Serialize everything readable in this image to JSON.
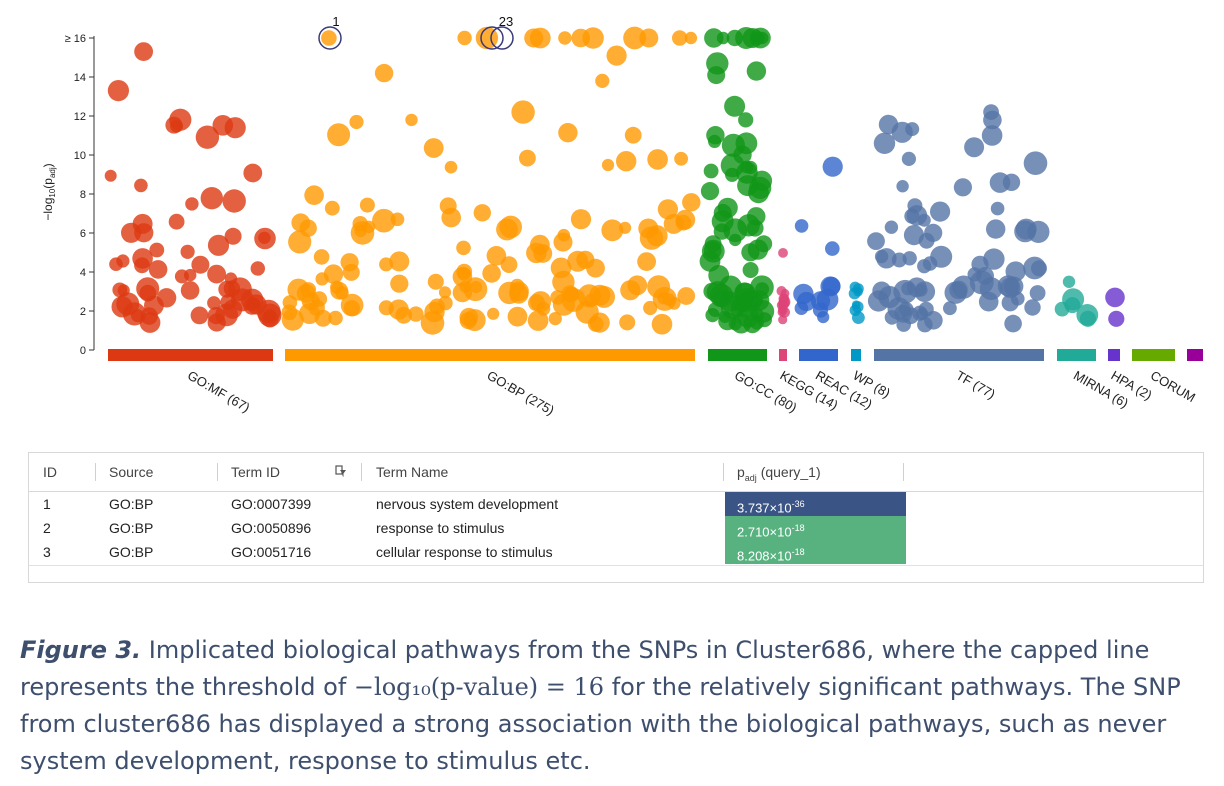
{
  "colors": {
    "GO:MF": "#dc3912",
    "GO:BP": "#ff9900",
    "GO:CC": "#109618",
    "KEGG": "#dd4477",
    "REAC": "#3366cc",
    "WP": "#0099c6",
    "TF": "#5574a6",
    "MIRNA": "#22aa99",
    "HPA": "#6633cc",
    "CORUM": "#66aa00",
    "HP": "#990099",
    "highlight_dark": "#3a5486",
    "highlight_green": "#58b27f"
  },
  "chart_data": {
    "type": "scatter",
    "title": "",
    "ylabel": "−log10(padj)",
    "ylabel_main": "−log",
    "ylabel_sub10": "10",
    "ylabel_p": "(p",
    "ylabel_adj": "adj",
    "ylabel_close": ")",
    "ylim": [
      0,
      16
    ],
    "yticks": [
      "0",
      "2",
      "4",
      "6",
      "8",
      "10",
      "12",
      "14",
      "≥ 16"
    ],
    "categories": [
      {
        "key": "GO:MF",
        "label": "GO:MF (67)",
        "count": 67
      },
      {
        "key": "GO:BP",
        "label": "GO:BP (275)",
        "count": 275
      },
      {
        "key": "GO:CC",
        "label": "GO:CC (80)",
        "count": 80
      },
      {
        "key": "KEGG",
        "label": "KEGG (14)",
        "count": 14
      },
      {
        "key": "REAC",
        "label": "REAC (12)",
        "count": 12
      },
      {
        "key": "WP",
        "label": "WP (8)",
        "count": 8
      },
      {
        "key": "TF",
        "label": "TF (77)",
        "count": 77
      },
      {
        "key": "MIRNA",
        "label": "MIRNA (6)",
        "count": 6
      },
      {
        "key": "HPA",
        "label": "HPA (2)",
        "count": 2
      },
      {
        "key": "CORUM",
        "label": "CORUM",
        "count": 0
      },
      {
        "key": "HP",
        "label": "",
        "count": 0
      }
    ],
    "highlighted": [
      {
        "label": "1",
        "source": "GO:BP",
        "value": 16
      },
      {
        "label": "2",
        "source": "GO:BP",
        "value": 16
      },
      {
        "label": "3",
        "source": "GO:BP",
        "value": 16
      }
    ],
    "highlight_group_label": "23"
  },
  "table": {
    "headers": {
      "id": "ID",
      "source": "Source",
      "term_id": "Term ID",
      "term_name": "Term Name",
      "padj_prefix": "p",
      "padj_sub": "adj",
      "padj_suffix": " (query_1)"
    },
    "rows": [
      {
        "id": "1",
        "source": "GO:BP",
        "term_id": "GO:0007399",
        "term_name": "nervous system development",
        "p_mant": "3.737×10",
        "p_exp": "-36",
        "color": "#3a5486"
      },
      {
        "id": "2",
        "source": "GO:BP",
        "term_id": "GO:0050896",
        "term_name": "response to stimulus",
        "p_mant": "2.710×10",
        "p_exp": "-18",
        "color": "#58b27f"
      },
      {
        "id": "3",
        "source": "GO:BP",
        "term_id": "GO:0051716",
        "term_name": "cellular response to stimulus",
        "p_mant": "8.208×10",
        "p_exp": "-18",
        "color": "#58b27f"
      }
    ]
  },
  "caption": {
    "fig_label": "Figure 3.",
    "text1": " Implicated biological pathways from the SNPs in Cluster686, where the capped line represents the threshold of ",
    "math": "−log₁₀(p-value) = 16",
    "text2": " for the relatively significant pathways. The SNP from cluster686 has displayed a strong association with the biological pathways, such as never system development, response to stimulus etc."
  }
}
